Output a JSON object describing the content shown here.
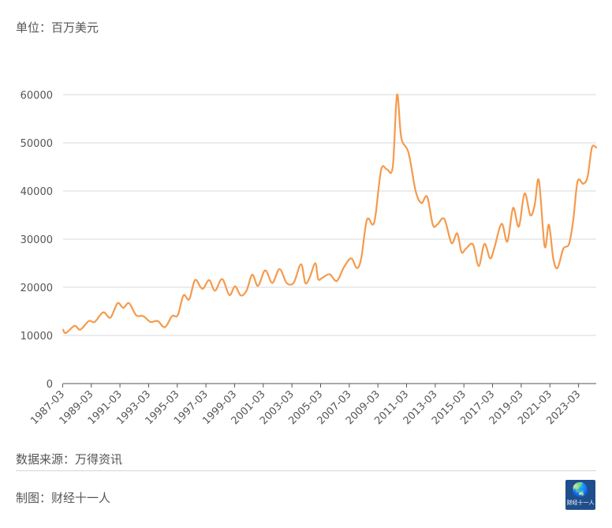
{
  "unit_label": "单位：百万美元",
  "source_label": "数据来源：万得资讯",
  "credit_label": "制图：财经十一人",
  "logo": {
    "icon": "globe-icon",
    "text": "财经十一人",
    "color": "#1f4e8c"
  },
  "colors": {
    "line": "#f59a4d",
    "grid": "#d9d9d9",
    "text": "#555555"
  },
  "chart_data": {
    "type": "line",
    "title": "",
    "xlabel": "",
    "ylabel": "单位：百万美元",
    "ylim": [
      0,
      60000
    ],
    "yticks": [
      "0",
      "10000",
      "20000",
      "30000",
      "40000",
      "50000",
      "60000"
    ],
    "xticks": [
      "1987-03",
      "1989-03",
      "1991-03",
      "1993-03",
      "1995-03",
      "1997-03",
      "1999-03",
      "2001-03",
      "2003-03",
      "2005-03",
      "2007-03",
      "2009-03",
      "2011-03",
      "2013-03",
      "2015-03",
      "2017-03",
      "2019-03",
      "2021-03",
      "2023-03"
    ],
    "x_start": 1987.2,
    "x_end": 2024.4,
    "series": [
      {
        "name": "",
        "x": [
          1987.2,
          1987.4,
          1988.0,
          1988.4,
          1989.0,
          1989.4,
          1990.0,
          1990.5,
          1991.0,
          1991.4,
          1991.8,
          1992.3,
          1992.8,
          1993.3,
          1993.8,
          1994.3,
          1994.8,
          1995.2,
          1995.6,
          1996.0,
          1996.4,
          1996.8,
          1997.0,
          1997.4,
          1997.8,
          1998.3,
          1998.8,
          1999.2,
          1999.6,
          2000.0,
          2000.4,
          2000.8,
          2001.3,
          2001.8,
          2002.3,
          2002.8,
          2003.3,
          2003.8,
          2004.1,
          2004.4,
          2004.8,
          2005.0,
          2005.3,
          2005.8,
          2006.3,
          2006.8,
          2007.3,
          2007.7,
          2008.0,
          2008.4,
          2008.8,
          2009.0,
          2009.4,
          2009.8,
          2010.2,
          2010.5,
          2010.8,
          2011.3,
          2011.8,
          2012.2,
          2012.6,
          2013.0,
          2013.3,
          2013.8,
          2014.3,
          2014.7,
          2015.0,
          2015.3,
          2015.8,
          2016.2,
          2016.6,
          2017.0,
          2017.3,
          2017.8,
          2018.2,
          2018.6,
          2019.0,
          2019.4,
          2019.8,
          2020.1,
          2020.4,
          2020.8,
          2021.1,
          2021.4,
          2021.7,
          2022.1,
          2022.5,
          2022.8,
          2023.1,
          2023.5,
          2023.8,
          2024.1,
          2024.4
        ],
        "values": [
          11200,
          10500,
          12000,
          11200,
          13000,
          12800,
          14800,
          13700,
          16700,
          15700,
          16700,
          14200,
          14000,
          12800,
          13000,
          11700,
          14000,
          14200,
          18300,
          17500,
          21500,
          20000,
          19800,
          21500,
          19300,
          21700,
          18400,
          20200,
          18300,
          19300,
          22600,
          20300,
          23500,
          20900,
          23800,
          20900,
          21000,
          24800,
          20900,
          22000,
          25000,
          21700,
          22000,
          22700,
          21300,
          24200,
          26000,
          24000,
          26000,
          34000,
          33000,
          35000,
          44500,
          44500,
          45000,
          60000,
          51000,
          48000,
          40000,
          37500,
          38800,
          33000,
          33000,
          34200,
          29200,
          31200,
          27300,
          28000,
          28900,
          24400,
          29000,
          26000,
          28300,
          33200,
          29500,
          36500,
          32600,
          39500,
          35000,
          37000,
          42200,
          28500,
          33000,
          26000,
          24000,
          28000,
          29000,
          34000,
          42000,
          41500,
          43000,
          49000,
          49000
        ]
      }
    ]
  }
}
